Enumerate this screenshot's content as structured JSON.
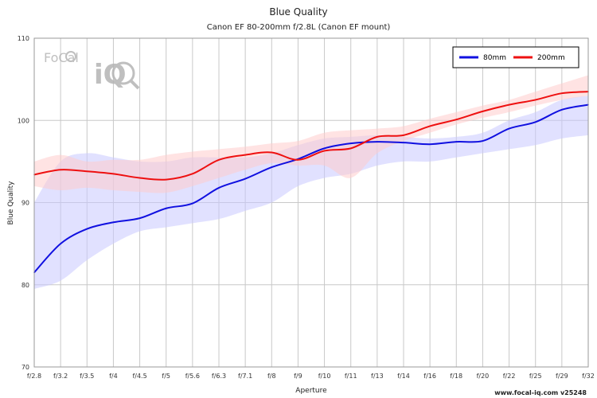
{
  "chart_data": {
    "type": "line",
    "title": "Blue Quality",
    "subtitle": "Canon EF 80-200mm f/2.8L (Canon EF mount)",
    "xlabel": "Aperture",
    "ylabel": "Blue Quality",
    "ylim": [
      70,
      110
    ],
    "yticks": [
      "70",
      "80",
      "90",
      "100",
      "110"
    ],
    "categories": [
      "f/2.8",
      "f/3.2",
      "f/3.5",
      "f/4",
      "f/4.5",
      "f/5",
      "f/5.6",
      "f/6.3",
      "f/7.1",
      "f/8",
      "f/9",
      "f/10",
      "f/11",
      "f/13",
      "f/14",
      "f/16",
      "f/18",
      "f/20",
      "f/22",
      "f/25",
      "f/29",
      "f/32"
    ],
    "grid": true,
    "legend_position": "top-right",
    "series": [
      {
        "name": "80mm",
        "color": "#1010e0",
        "band_color": "#c8c8ff",
        "values": [
          81.5,
          85.0,
          86.8,
          87.6,
          88.1,
          89.3,
          89.9,
          91.8,
          92.9,
          94.3,
          95.3,
          96.6,
          97.2,
          97.4,
          97.3,
          97.1,
          97.4,
          97.5,
          99.0,
          99.8,
          101.3,
          101.9
        ],
        "upper": [
          90.0,
          95.0,
          96.0,
          95.5,
          95.0,
          95.0,
          95.5,
          95.5,
          95.5,
          96.0,
          97.0,
          97.8,
          98.0,
          98.2,
          98.0,
          97.8,
          98.0,
          98.5,
          100.0,
          101.0,
          102.5,
          103.0
        ],
        "lower": [
          79.5,
          80.5,
          83.0,
          85.0,
          86.5,
          87.0,
          87.5,
          88.0,
          89.0,
          90.0,
          92.0,
          93.0,
          93.5,
          94.5,
          95.0,
          95.0,
          95.5,
          96.0,
          96.5,
          97.0,
          97.8,
          98.2
        ]
      },
      {
        "name": "200mm",
        "color": "#ee1010",
        "band_color": "#ffcccc",
        "values": [
          93.4,
          94.0,
          93.8,
          93.5,
          93.0,
          92.8,
          93.5,
          95.2,
          95.8,
          96.1,
          95.2,
          96.3,
          96.6,
          98.0,
          98.2,
          99.3,
          100.1,
          101.1,
          101.9,
          102.5,
          103.3,
          103.5
        ],
        "upper": [
          95.0,
          95.8,
          95.0,
          95.2,
          95.2,
          95.8,
          96.2,
          96.5,
          96.8,
          97.2,
          97.5,
          98.5,
          98.8,
          99.0,
          99.3,
          100.2,
          101.0,
          101.8,
          102.5,
          103.5,
          104.5,
          105.5
        ],
        "lower": [
          92.0,
          91.5,
          91.8,
          91.5,
          91.3,
          91.2,
          92.0,
          93.0,
          94.0,
          94.8,
          94.5,
          94.5,
          93.0,
          96.0,
          97.5,
          98.5,
          99.5,
          100.3,
          101.0,
          101.8,
          102.5,
          103.0
        ]
      }
    ]
  },
  "watermark": {
    "line1": "FoCal",
    "line2": "iQ"
  },
  "footer": "www.focal-iq.com  v25248"
}
